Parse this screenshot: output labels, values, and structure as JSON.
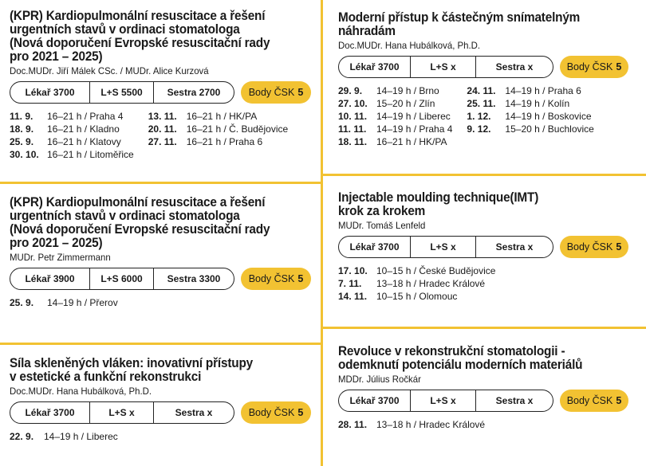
{
  "courses": [
    {
      "title_lines": [
        "(KPR) Kardiopulmonální resuscitace a řešení",
        "urgentních stavů v ordinaci stomatologa",
        "(Nová doporučení Evropské resuscitační rady",
        "pro 2021 – 2025)"
      ],
      "lecturer": "Doc.MUDr. Jiří Málek CSc. / MUDr. Alice Kurzová",
      "prices": [
        "Lékař 3700",
        "L+S 5500",
        "Sestra 2700"
      ],
      "points_label": "Body ČSK",
      "points_value": "5",
      "date_columns": [
        [
          {
            "date": "11. 9.",
            "info": "16–21 h / Praha 4"
          },
          {
            "date": "18. 9.",
            "info": "16–21 h / Kladno"
          },
          {
            "date": "25. 9.",
            "info": "16–21 h / Klatovy"
          },
          {
            "date": "30. 10.",
            "info": "16–21 h / Litoměřice"
          }
        ],
        [
          {
            "date": "13. 11.",
            "info": "16–21 h / HK/PA"
          },
          {
            "date": "20. 11.",
            "info": "16–21 h / Č. Budějovice"
          },
          {
            "date": "27. 11.",
            "info": "16–21 h / Praha 6"
          }
        ]
      ]
    },
    {
      "title_lines": [
        "(KPR) Kardiopulmonální resuscitace a řešení",
        "urgentních stavů v ordinaci stomatologa",
        "(Nová doporučení Evropské resuscitační rady",
        "pro 2021 – 2025)"
      ],
      "lecturer": "MUDr. Petr Zimmermann",
      "prices": [
        "Lékař 3900",
        "L+S 6000",
        "Sestra 3300"
      ],
      "points_label": "Body ČSK",
      "points_value": "5",
      "date_columns": [
        [
          {
            "date": "25. 9.",
            "info": "14–19 h / Přerov"
          }
        ]
      ]
    },
    {
      "title_lines": [
        "Síla skleněných vláken: inovativní přístupy",
        "v estetické a funkční rekonstrukci"
      ],
      "lecturer": "Doc.MUDr. Hana Hubálková, Ph.D.",
      "prices": [
        "Lékař 3700",
        "L+S x",
        "Sestra x"
      ],
      "points_label": "Body ČSK",
      "points_value": "5",
      "date_columns": [
        [
          {
            "date": "22. 9.",
            "info": "14–19 h / Liberec"
          }
        ]
      ]
    },
    {
      "title_lines": [
        "Moderní přístup k částečným snímatelným",
        "náhradám"
      ],
      "lecturer": "Doc.MUDr. Hana Hubálková, Ph.D.",
      "prices": [
        "Lékař 3700",
        "L+S x",
        "Sestra x"
      ],
      "points_label": "Body ČSK",
      "points_value": "5",
      "date_columns": [
        [
          {
            "date": "29. 9.",
            "info": "14–19 h / Brno"
          },
          {
            "date": "27. 10.",
            "info": "15–20 h / Zlín"
          },
          {
            "date": "10. 11.",
            "info": "14–19 h / Liberec"
          },
          {
            "date": "11. 11.",
            "info": "14–19 h / Praha 4"
          },
          {
            "date": "18. 11.",
            "info": "16–21 h / HK/PA"
          }
        ],
        [
          {
            "date": "24. 11.",
            "info": "14–19 h / Praha 6"
          },
          {
            "date": "25. 11.",
            "info": "14–19 h / Kolín"
          },
          {
            "date": "1. 12.",
            "info": "14–19 h / Boskovice"
          },
          {
            "date": "9. 12.",
            "info": "15–20 h / Buchlovice"
          }
        ]
      ]
    },
    {
      "title_lines": [
        "Injectable moulding technique(IMT)",
        "krok za krokem"
      ],
      "lecturer": "MUDr. Tomáš Lenfeld",
      "prices": [
        "Lékař 3700",
        "L+S x",
        "Sestra x"
      ],
      "points_label": "Body ČSK",
      "points_value": "5",
      "date_columns": [
        [
          {
            "date": "17. 10.",
            "info": "10–15 h / České Budějovice"
          },
          {
            "date": "7. 11.",
            "info": "13–18 h / Hradec Králové"
          },
          {
            "date": "14. 11.",
            "info": "10–15 h / Olomouc"
          }
        ]
      ]
    },
    {
      "title_lines": [
        "Revoluce v rekonstrukční stomatologii -",
        "odemknutí potenciálu moderních materiálů"
      ],
      "lecturer": "MDDr. Július Ročkár",
      "prices": [
        "Lékař 3700",
        "L+S x",
        "Sestra x"
      ],
      "points_label": "Body ČSK",
      "points_value": "5",
      "date_columns": [
        [
          {
            "date": "28. 11.",
            "info": "13–18 h / Hradec Králové"
          }
        ]
      ]
    }
  ],
  "colors": {
    "accent": "#f2c232",
    "text": "#1a1a1a"
  }
}
